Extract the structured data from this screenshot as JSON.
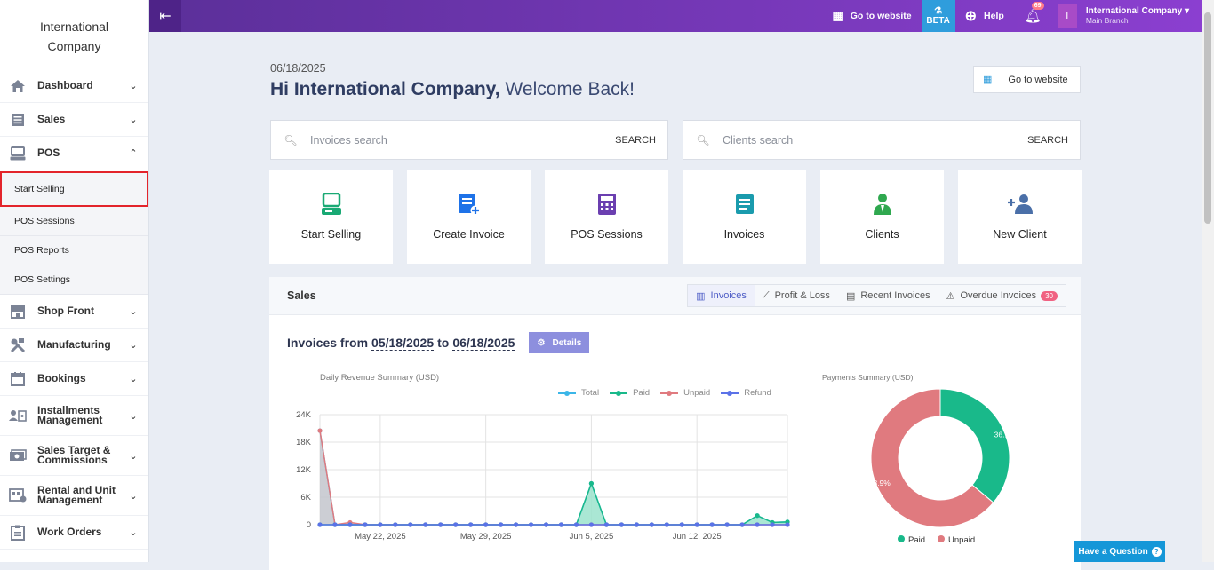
{
  "sidebar": {
    "brand": "International Company",
    "items": [
      {
        "label": "Dashboard",
        "icon": "home-icon"
      },
      {
        "label": "Sales",
        "icon": "sales-icon"
      },
      {
        "label": "POS",
        "icon": "pos-icon"
      },
      {
        "label": "Shop Front",
        "icon": "store-icon"
      },
      {
        "label": "Manufacturing",
        "icon": "tools-icon"
      },
      {
        "label": "Bookings",
        "icon": "calendar-icon"
      },
      {
        "label": "Installments Management",
        "icon": "installments-icon"
      },
      {
        "label": "Sales Target & Commissions",
        "icon": "money-icon"
      },
      {
        "label": "Rental and Unit Management",
        "icon": "rental-icon"
      },
      {
        "label": "Work Orders",
        "icon": "clipboard-icon"
      }
    ],
    "pos_sub": [
      "Start Selling",
      "POS Sessions",
      "POS Reports",
      "POS Settings"
    ]
  },
  "topbar": {
    "go_to_website": "Go to website",
    "beta": "BETA",
    "help": "Help",
    "notifications": "69",
    "avatar_initial": "I",
    "user_name": "International Company",
    "user_branch": "Main Branch"
  },
  "main": {
    "date": "06/18/2025",
    "welcome_name": "Hi International Company,",
    "welcome_rest": " Welcome Back!",
    "go_to_website": "Go to website",
    "invoices_search": {
      "placeholder": "Invoices search",
      "button": "SEARCH"
    },
    "clients_search": {
      "placeholder": "Clients search",
      "button": "SEARCH"
    },
    "tiles": [
      "Start Selling",
      "Create Invoice",
      "POS Sessions",
      "Invoices",
      "Clients",
      "New Client"
    ]
  },
  "sales": {
    "title": "Sales",
    "tabs": [
      "Invoices",
      "Profit & Loss",
      "Recent Invoices",
      "Overdue Invoices"
    ],
    "overdue_count": "30",
    "range_prefix": "Invoices from",
    "range_from": "05/18/2025",
    "range_to_word": "to",
    "range_to": "06/18/2025",
    "details": "Details"
  },
  "help_button": "Have a Question",
  "colors": {
    "total": "#3bb6e8",
    "paid": "#19b98a",
    "unpaid": "#e07a7f",
    "refund": "#5b72e8"
  },
  "chart_data": [
    {
      "type": "line",
      "title": "Daily Revenue Summary (USD)",
      "x_ticks": [
        "May 22, 2025",
        "May 29, 2025",
        "Jun 5, 2025",
        "Jun 12, 2025"
      ],
      "y_ticks": [
        "0",
        "6K",
        "12K",
        "18K",
        "24K"
      ],
      "ylim": [
        0,
        24000
      ],
      "x": [
        "2025-05-18",
        "2025-05-19",
        "2025-05-20",
        "2025-05-21",
        "2025-05-22",
        "2025-05-23",
        "2025-05-24",
        "2025-05-25",
        "2025-05-26",
        "2025-05-27",
        "2025-05-28",
        "2025-05-29",
        "2025-05-30",
        "2025-05-31",
        "2025-06-01",
        "2025-06-02",
        "2025-06-03",
        "2025-06-04",
        "2025-06-05",
        "2025-06-06",
        "2025-06-07",
        "2025-06-08",
        "2025-06-09",
        "2025-06-10",
        "2025-06-11",
        "2025-06-12",
        "2025-06-13",
        "2025-06-14",
        "2025-06-15",
        "2025-06-16",
        "2025-06-17",
        "2025-06-18"
      ],
      "series": [
        {
          "name": "Total",
          "values": [
            20500,
            0,
            0,
            0,
            0,
            0,
            0,
            0,
            0,
            0,
            0,
            0,
            0,
            0,
            0,
            0,
            0,
            0,
            9000,
            0,
            0,
            0,
            0,
            0,
            0,
            0,
            0,
            0,
            0,
            2000,
            500,
            600
          ]
        },
        {
          "name": "Paid",
          "values": [
            0,
            0,
            0,
            0,
            0,
            0,
            0,
            0,
            0,
            0,
            0,
            0,
            0,
            0,
            0,
            0,
            0,
            0,
            9000,
            0,
            0,
            0,
            0,
            0,
            0,
            0,
            0,
            0,
            0,
            2000,
            500,
            600
          ]
        },
        {
          "name": "Unpaid",
          "values": [
            20500,
            0,
            500,
            0,
            0,
            0,
            0,
            0,
            0,
            0,
            0,
            0,
            0,
            0,
            0,
            0,
            0,
            0,
            0,
            0,
            0,
            0,
            0,
            0,
            0,
            0,
            0,
            0,
            0,
            0,
            0,
            0
          ]
        },
        {
          "name": "Refund",
          "values": [
            0,
            0,
            0,
            0,
            0,
            0,
            0,
            0,
            0,
            0,
            0,
            0,
            0,
            0,
            0,
            0,
            0,
            0,
            0,
            0,
            0,
            0,
            0,
            0,
            0,
            0,
            0,
            0,
            0,
            0,
            0,
            0
          ]
        }
      ]
    },
    {
      "type": "pie",
      "title": "Payments Summary (USD)",
      "labels": [
        "Paid",
        "Unpaid"
      ],
      "values": [
        36.1,
        63.9
      ],
      "value_labels": [
        "36.1%",
        "63.9%"
      ]
    }
  ]
}
